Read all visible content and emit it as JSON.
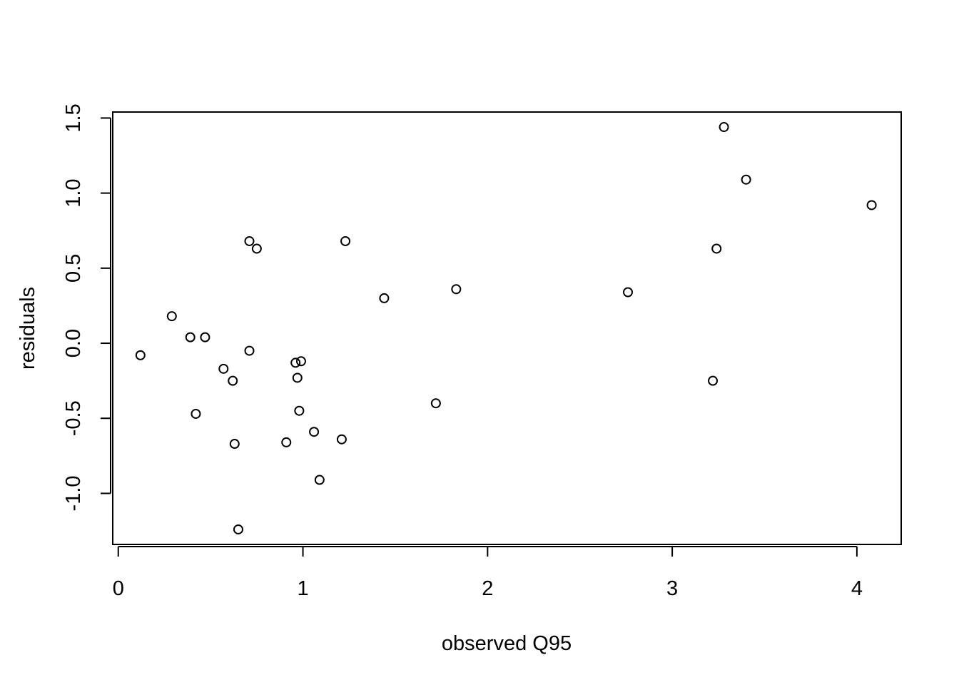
{
  "chart_data": {
    "type": "scatter",
    "title": "",
    "xlabel": "observed Q95",
    "ylabel": "residuals",
    "xlim": [
      -0.03,
      4.24
    ],
    "ylim": [
      -1.34,
      1.54
    ],
    "x_ticks": [
      0,
      1,
      2,
      3,
      4
    ],
    "x_tick_labels": [
      "0",
      "1",
      "2",
      "3",
      "4"
    ],
    "y_ticks": [
      -1.0,
      -0.5,
      0.0,
      0.5,
      1.0,
      1.5
    ],
    "y_tick_labels": [
      "-1.0",
      "-0.5",
      "0.0",
      "0.5",
      "1.0",
      "1.5"
    ],
    "grid": false,
    "marker": "open-circle",
    "colors": {
      "points": "#000000",
      "axes": "#000000",
      "background": "#ffffff"
    },
    "points": [
      {
        "x": 0.12,
        "y": -0.08
      },
      {
        "x": 0.29,
        "y": 0.18
      },
      {
        "x": 0.39,
        "y": 0.04
      },
      {
        "x": 0.42,
        "y": -0.47
      },
      {
        "x": 0.47,
        "y": 0.04
      },
      {
        "x": 0.57,
        "y": -0.17
      },
      {
        "x": 0.62,
        "y": -0.25
      },
      {
        "x": 0.63,
        "y": -0.67
      },
      {
        "x": 0.65,
        "y": -1.24
      },
      {
        "x": 0.71,
        "y": 0.68
      },
      {
        "x": 0.71,
        "y": -0.05
      },
      {
        "x": 0.75,
        "y": 0.63
      },
      {
        "x": 0.91,
        "y": -0.66
      },
      {
        "x": 0.96,
        "y": -0.13
      },
      {
        "x": 0.97,
        "y": -0.23
      },
      {
        "x": 0.98,
        "y": -0.45
      },
      {
        "x": 0.99,
        "y": -0.12
      },
      {
        "x": 1.06,
        "y": -0.59
      },
      {
        "x": 1.09,
        "y": -0.91
      },
      {
        "x": 1.21,
        "y": -0.64
      },
      {
        "x": 1.23,
        "y": 0.68
      },
      {
        "x": 1.44,
        "y": 0.3
      },
      {
        "x": 1.72,
        "y": -0.4
      },
      {
        "x": 1.83,
        "y": 0.36
      },
      {
        "x": 2.76,
        "y": 0.34
      },
      {
        "x": 3.22,
        "y": -0.25
      },
      {
        "x": 3.24,
        "y": 0.63
      },
      {
        "x": 3.28,
        "y": 1.44
      },
      {
        "x": 3.4,
        "y": 1.09
      },
      {
        "x": 4.08,
        "y": 0.92
      }
    ]
  }
}
